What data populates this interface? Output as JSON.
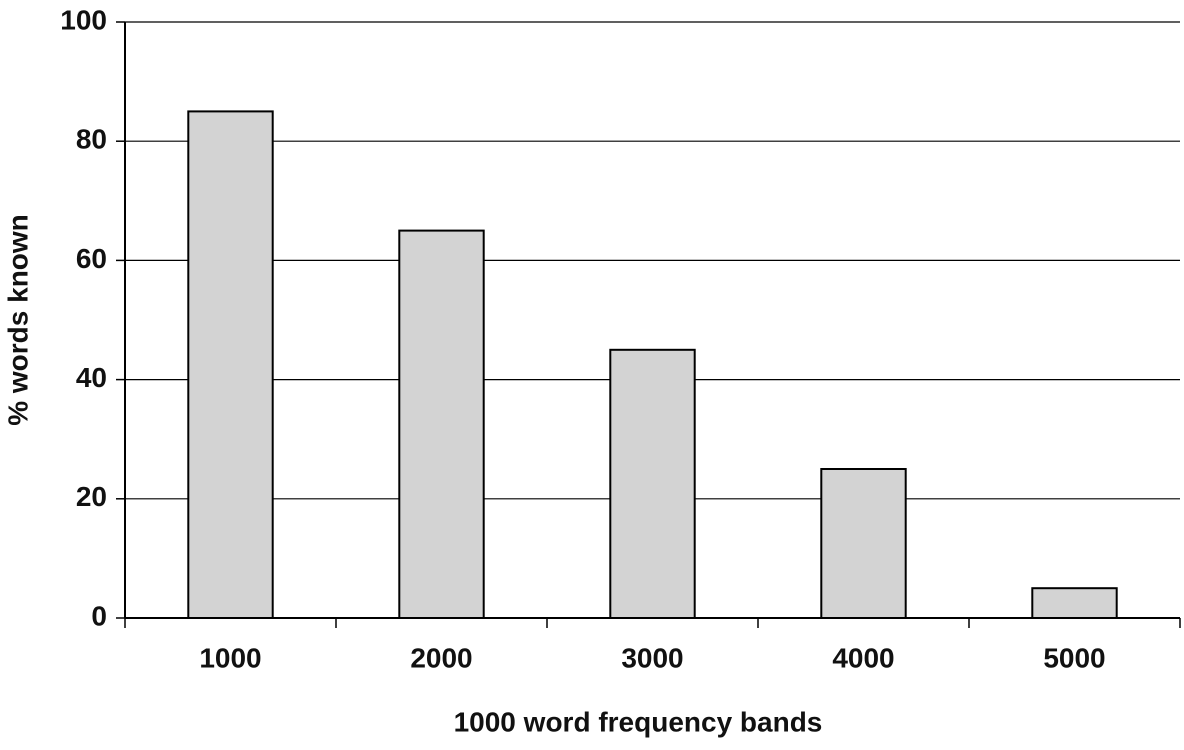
{
  "chart_data": {
    "type": "bar",
    "x_label": "1000 word frequency bands",
    "y_label": "% words known",
    "categories": [
      "1000",
      "2000",
      "3000",
      "4000",
      "5000"
    ],
    "values": [
      85,
      65,
      45,
      25,
      5
    ],
    "color": "#d3d3d3",
    "ylim": [
      0,
      100
    ],
    "yticks": [
      0,
      20,
      40,
      60,
      80,
      100
    ],
    "grid": true
  }
}
